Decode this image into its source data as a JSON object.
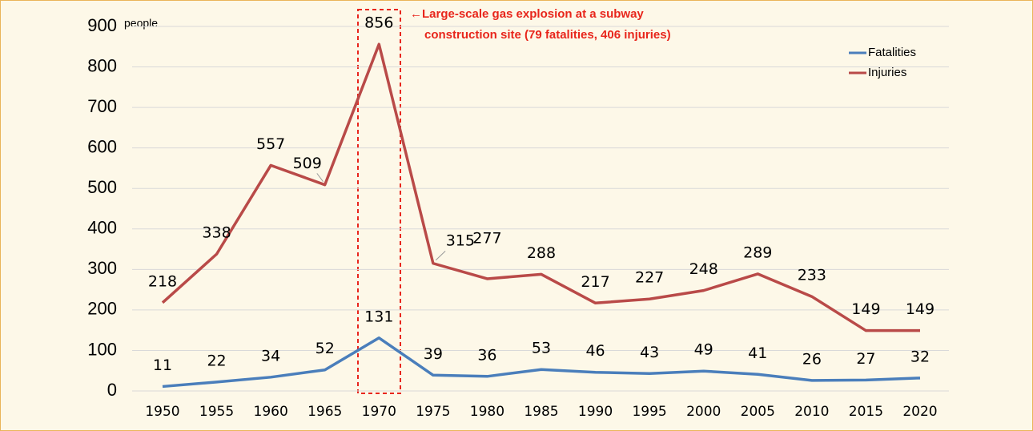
{
  "chart_data": {
    "type": "line",
    "y_unit": "people",
    "categories": [
      "1950",
      "1955",
      "1960",
      "1965",
      "1970",
      "1975",
      "1980",
      "1985",
      "1990",
      "1995",
      "2000",
      "2005",
      "2010",
      "2015",
      "2020"
    ],
    "series": [
      {
        "name": "Fatalities",
        "color": "#4a7ebb",
        "values": [
          11,
          22,
          34,
          52,
          131,
          39,
          36,
          53,
          46,
          43,
          49,
          41,
          26,
          27,
          32
        ]
      },
      {
        "name": "Injuries",
        "color": "#b94a48",
        "values": [
          218,
          338,
          557,
          509,
          856,
          315,
          277,
          288,
          217,
          227,
          248,
          289,
          233,
          149,
          149
        ]
      }
    ],
    "ylim": [
      0,
      900
    ],
    "yticks": [
      0,
      100,
      200,
      300,
      400,
      500,
      600,
      700,
      800,
      900
    ],
    "grid": true,
    "legend": "upper right",
    "annotation": [
      "←Large-scale gas explosion at a subway",
      "construction site (79 fatalities, 406 injuries)"
    ]
  }
}
